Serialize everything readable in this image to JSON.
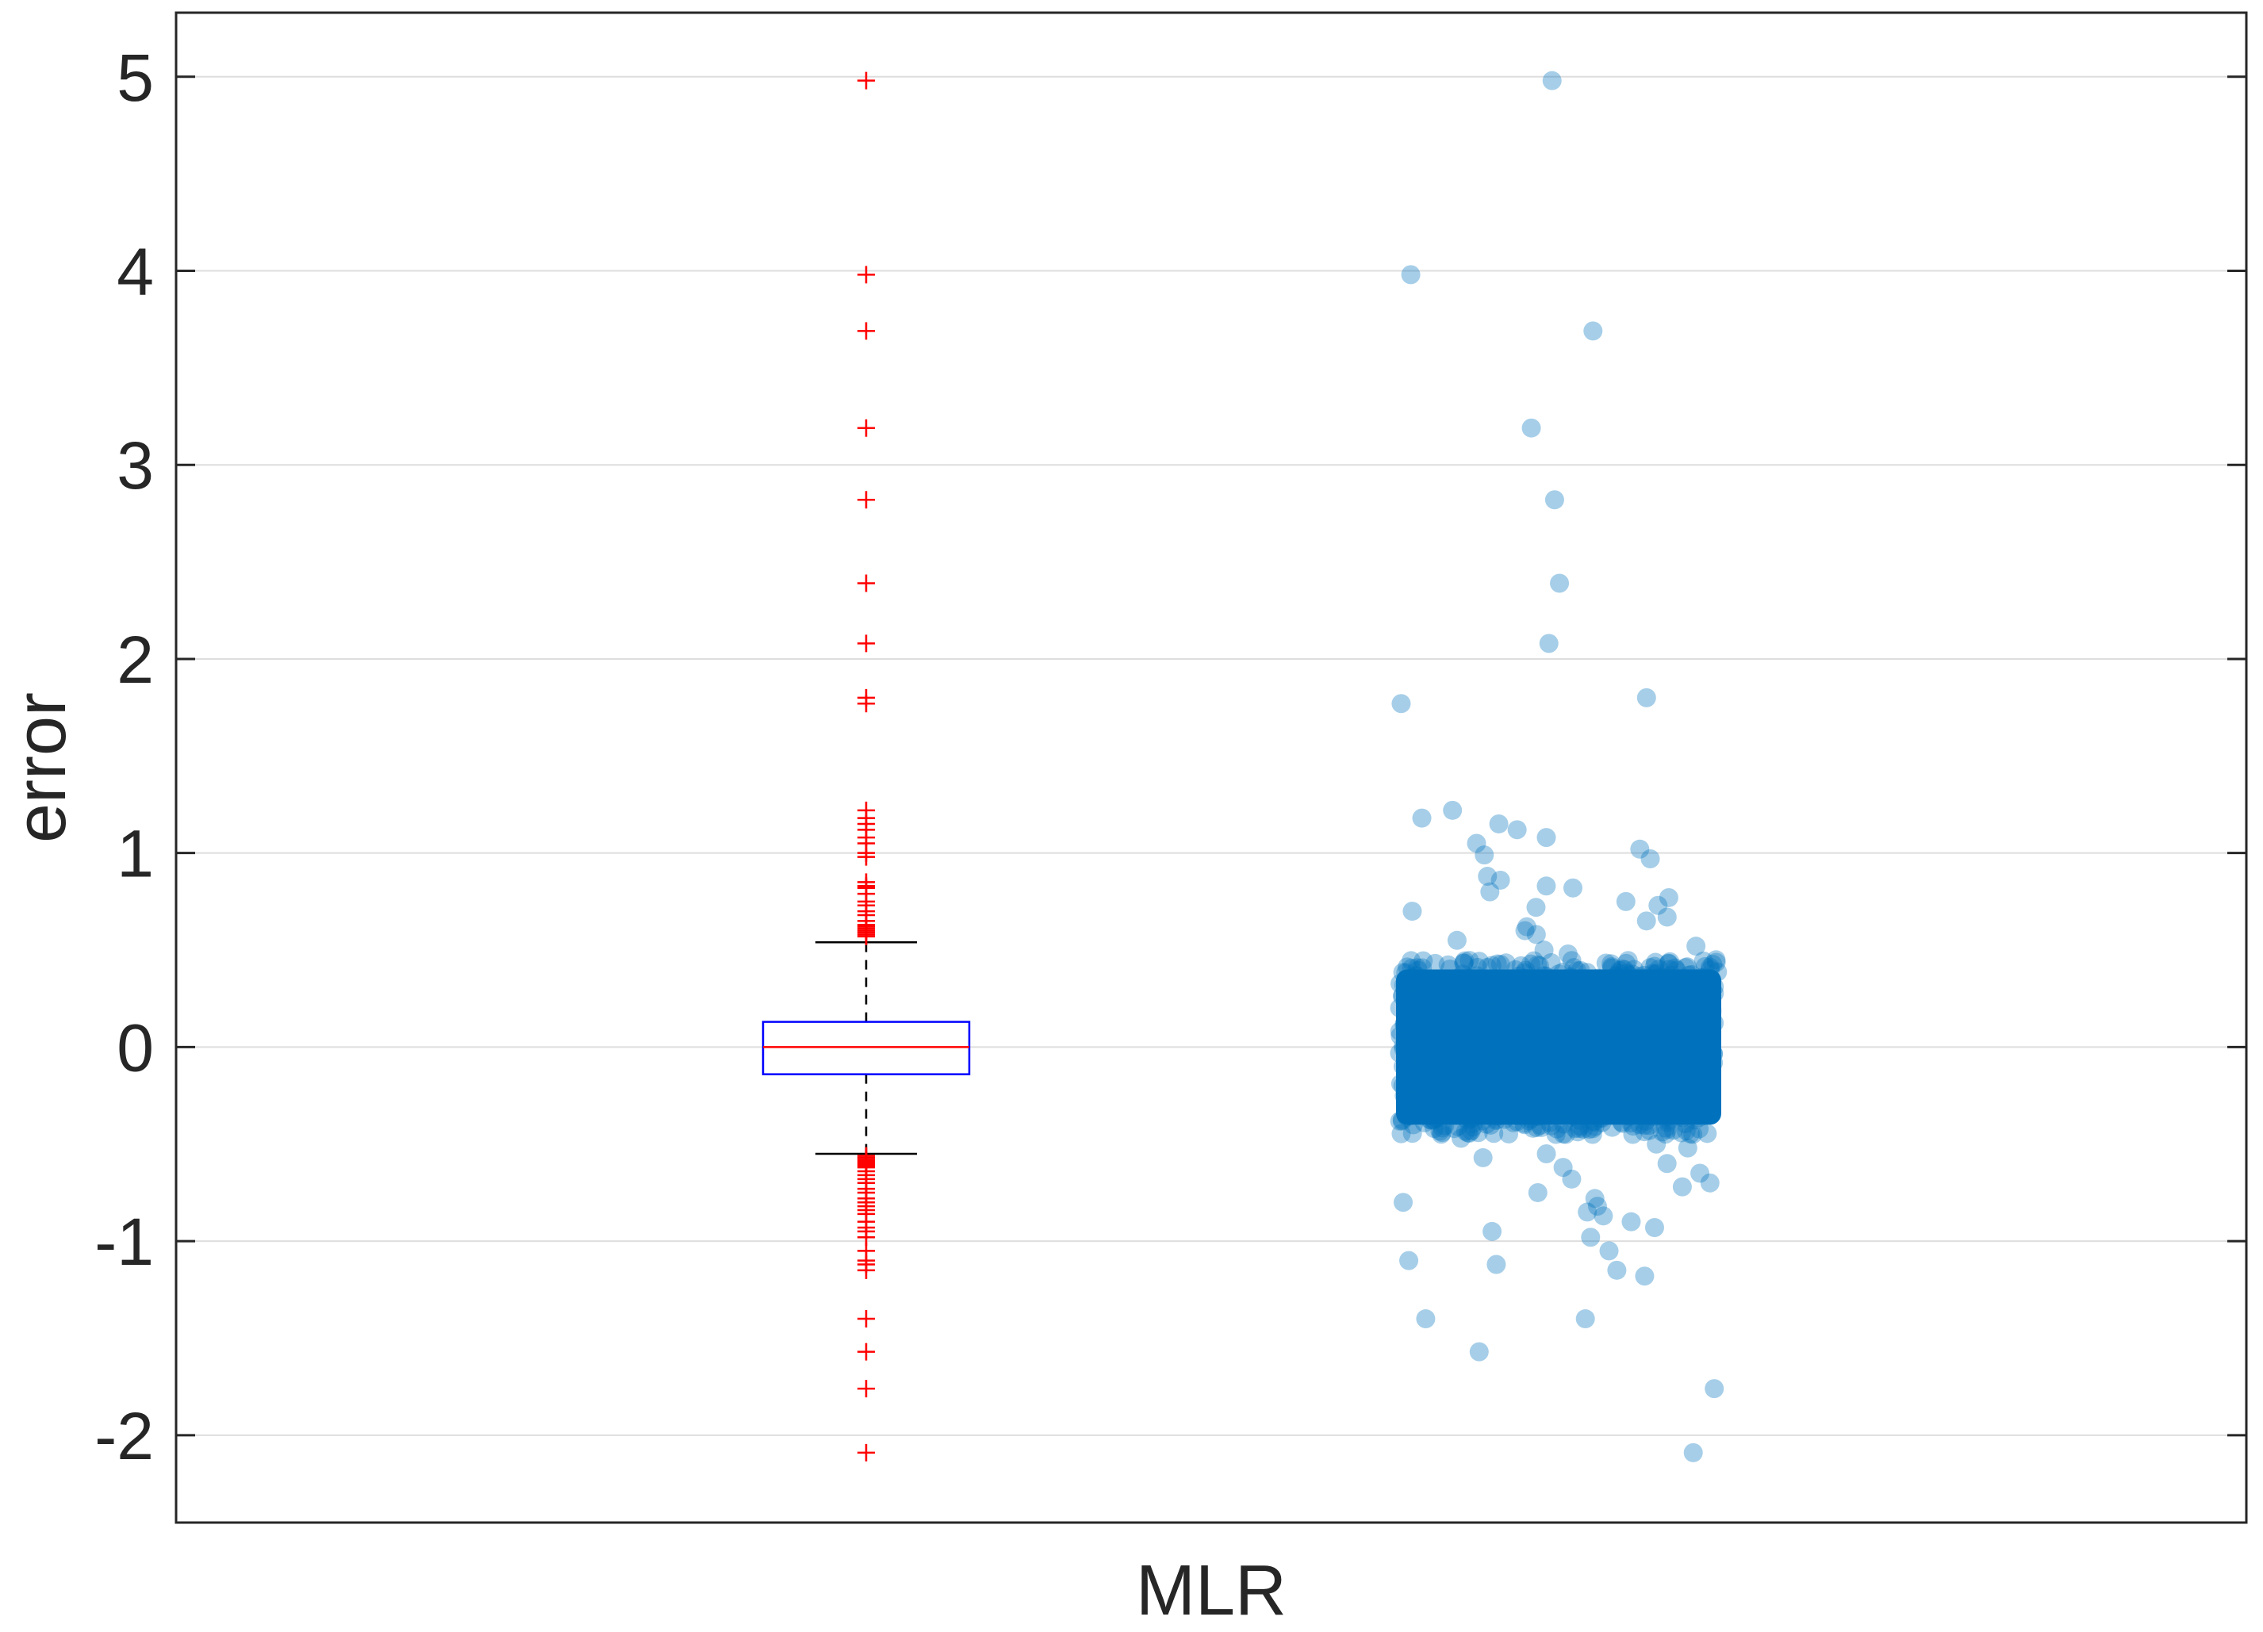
{
  "chart_data": {
    "type": "scatter",
    "title": "",
    "xlabel": "MLR",
    "ylabel": "error",
    "ylim": [
      -2.45,
      5.33
    ],
    "yticks": [
      -2,
      -1,
      0,
      1,
      2,
      3,
      4,
      5
    ],
    "grid": true,
    "legend": "none",
    "box": {
      "median": 0.0,
      "q1": -0.14,
      "q3": 0.13,
      "whisker_low": -0.55,
      "whisker_high": 0.54,
      "outliers": [
        4.98,
        3.98,
        3.69,
        3.19,
        2.82,
        2.39,
        2.08,
        1.8,
        1.77,
        1.22,
        1.18,
        1.15,
        1.12,
        1.08,
        1.05,
        1.0,
        0.98,
        0.85,
        0.83,
        0.82,
        0.79,
        0.75,
        0.73,
        0.7,
        0.68,
        0.65,
        0.63,
        0.62,
        0.61,
        0.6,
        0.59,
        0.58,
        0.57,
        -0.56,
        -0.57,
        -0.58,
        -0.59,
        -0.6,
        -0.61,
        -0.62,
        -0.64,
        -0.66,
        -0.68,
        -0.7,
        -0.73,
        -0.75,
        -0.78,
        -0.8,
        -0.82,
        -0.84,
        -0.86,
        -0.9,
        -0.93,
        -0.95,
        -0.98,
        -1.05,
        -1.1,
        -1.12,
        -1.15,
        -1.4,
        -1.57,
        -1.76,
        -2.09
      ]
    },
    "jitter": {
      "dense_band": [
        -0.45,
        0.45
      ],
      "points": [
        4.98,
        3.98,
        3.69,
        3.19,
        2.82,
        2.39,
        2.08,
        1.8,
        1.77,
        1.22,
        1.18,
        1.15,
        1.12,
        1.08,
        1.05,
        1.02,
        0.99,
        0.97,
        0.88,
        0.86,
        0.83,
        0.82,
        0.8,
        0.77,
        0.75,
        0.73,
        0.72,
        0.7,
        0.67,
        0.65,
        0.62,
        0.6,
        0.58,
        0.55,
        0.52,
        0.5,
        0.48,
        -0.47,
        -0.5,
        -0.52,
        -0.55,
        -0.57,
        -0.6,
        -0.62,
        -0.65,
        -0.68,
        -0.7,
        -0.72,
        -0.75,
        -0.78,
        -0.8,
        -0.82,
        -0.85,
        -0.87,
        -0.9,
        -0.93,
        -0.95,
        -0.98,
        -1.05,
        -1.1,
        -1.12,
        -1.15,
        -1.18,
        -1.4,
        -1.4,
        -1.57,
        -1.76,
        -2.09
      ],
      "color": "#0072BD"
    },
    "colors": {
      "box": "#0000FF",
      "median": "#FF0000",
      "outlier": "#FF0000",
      "whisker": "#000000"
    }
  }
}
